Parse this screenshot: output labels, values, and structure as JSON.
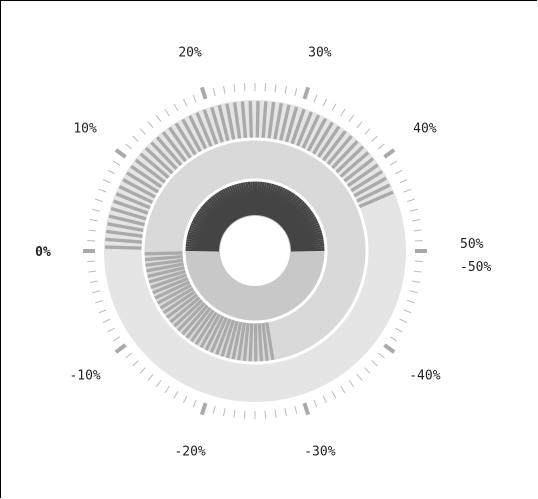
{
  "chart_data": {
    "type": "radial-gauge",
    "title": "",
    "ticks": [
      {
        "label": "0%",
        "value": 0
      },
      {
        "label": "10%",
        "value": 10
      },
      {
        "label": "20%",
        "value": 20
      },
      {
        "label": "30%",
        "value": 30
      },
      {
        "label": "40%",
        "value": 40
      },
      {
        "label": "50%",
        "value": 50
      },
      {
        "label": "-50%",
        "value": -50
      },
      {
        "label": "-40%",
        "value": -40
      },
      {
        "label": "-30%",
        "value": -30
      },
      {
        "label": "-20%",
        "value": -20
      },
      {
        "label": "-10%",
        "value": -10
      }
    ],
    "scale_range": [
      -50,
      50
    ],
    "rings": [
      {
        "ring": "outer",
        "value_percent": 44,
        "track_percent": 100,
        "fill_color": "#aaaaaa",
        "track_color": "#e5e5e5"
      },
      {
        "ring": "middle",
        "value_percent": -28,
        "track_percent": 100,
        "fill_color": "#aaaaaa",
        "track_color": "#d9d9d9"
      },
      {
        "ring": "inner",
        "value_percent": 50,
        "track_percent": 100,
        "fill_color": "#444444",
        "track_color": "#c8c8c8"
      }
    ],
    "colors": {
      "major_tick": "#aaaaaa",
      "minor_tick": "#bbbbbb",
      "zero_label": "#000000"
    }
  }
}
